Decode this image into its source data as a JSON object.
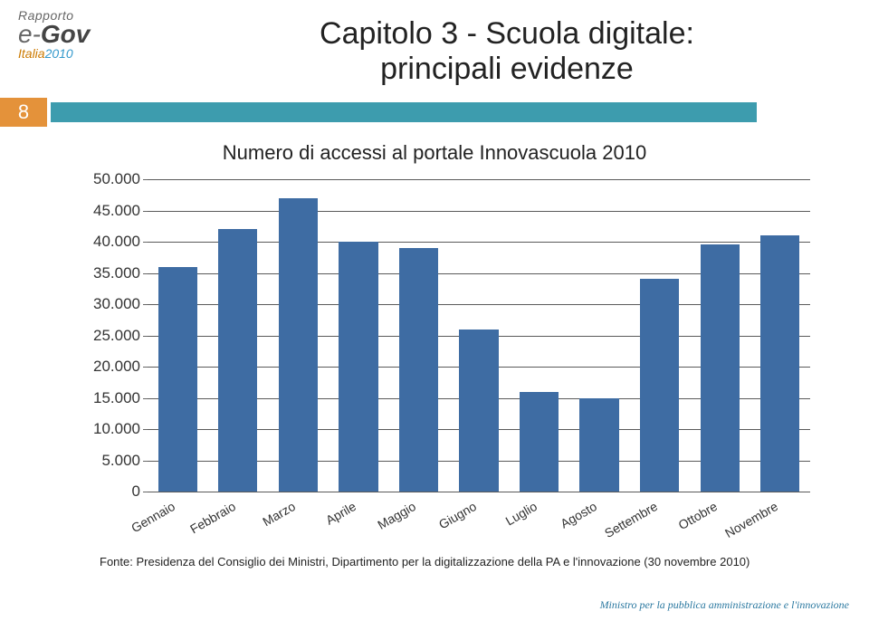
{
  "logo": {
    "line1": "Rapporto",
    "line2_html": "e-Gov",
    "line3_italia": "Italia",
    "line3_year": "2010"
  },
  "title_line1": "Capitolo 3 - Scuola digitale:",
  "title_line2": "principali evidenze",
  "page_number": "8",
  "band_teal": "#3d9cae",
  "band_orange": "#e4923a",
  "subtitle": "Numero di accessi al portale Innovascuola 2010",
  "chart": {
    "type": "bar",
    "categories": [
      "Gennaio",
      "Febbraio",
      "Marzo",
      "Aprile",
      "Maggio",
      "Giugno",
      "Luglio",
      "Agosto",
      "Settembre",
      "Ottobre",
      "Novembre"
    ],
    "values": [
      36000,
      42000,
      47000,
      40000,
      39000,
      26000,
      16000,
      15000,
      34000,
      39500,
      41000
    ],
    "bar_color": "#3e6ca3",
    "bar_width": 0.65,
    "ylim": [
      0,
      50000
    ],
    "yticks": [
      0,
      5000,
      10000,
      15000,
      20000,
      25000,
      30000,
      35000,
      40000,
      45000,
      50000
    ],
    "ytick_labels": [
      "0",
      "5.000",
      "10.000",
      "15.000",
      "20.000",
      "25.000",
      "30.000",
      "35.000",
      "40.000",
      "45.000",
      "50.000"
    ],
    "grid_color": "#5a5a5a",
    "grid_width": 1,
    "background_color": "#ffffff",
    "label_fontsize": 17,
    "xlabel_fontsize": 14,
    "xlabel_rotation": -30
  },
  "source": "Fonte: Presidenza del Consiglio dei Ministri, Dipartimento per la digitalizzazione della PA e l'innovazione (30 novembre 2010)",
  "footer": "Ministro per la pubblica amministrazione e l'innovazione"
}
